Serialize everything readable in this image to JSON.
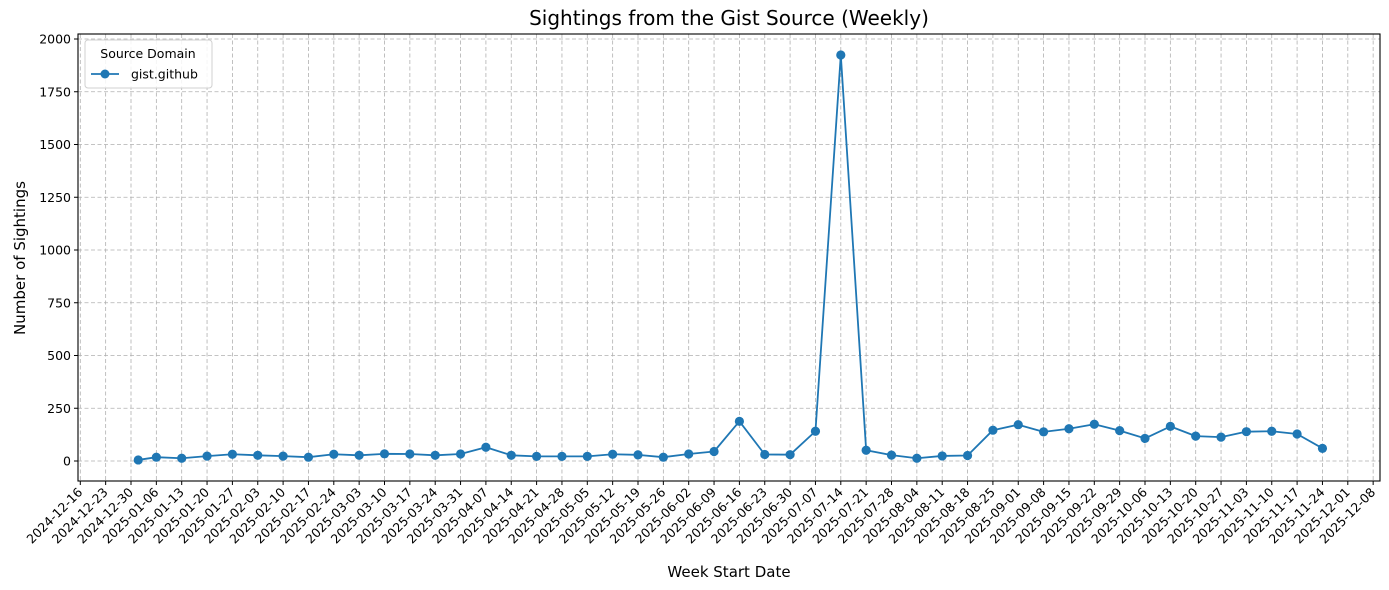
{
  "chart_data": {
    "type": "line",
    "title": "Sightings from the Gist Source (Weekly)",
    "xlabel": "Week Start Date",
    "ylabel": "Number of Sightings",
    "ylim": [
      -80,
      2020
    ],
    "yticks": [
      0,
      250,
      500,
      750,
      1000,
      1250,
      1500,
      1750,
      2000
    ],
    "grid": true,
    "legend": {
      "title": "Source Domain",
      "position": "upper left",
      "entries": [
        "gist.github"
      ]
    },
    "xtick_labels": [
      "2024-12-16",
      "2024-12-23",
      "2024-12-30",
      "2025-01-06",
      "2025-01-13",
      "2025-01-20",
      "2025-01-27",
      "2025-02-03",
      "2025-02-10",
      "2025-02-17",
      "2025-02-24",
      "2025-03-03",
      "2025-03-10",
      "2025-03-17",
      "2025-03-24",
      "2025-03-31",
      "2025-04-07",
      "2025-04-14",
      "2025-04-21",
      "2025-04-28",
      "2025-05-05",
      "2025-05-12",
      "2025-05-19",
      "2025-05-26",
      "2025-06-02",
      "2025-06-09",
      "2025-06-16",
      "2025-06-23",
      "2025-06-30",
      "2025-07-07",
      "2025-07-14",
      "2025-07-21",
      "2025-07-28",
      "2025-08-04",
      "2025-08-11",
      "2025-08-18",
      "2025-08-25",
      "2025-09-01",
      "2025-09-08",
      "2025-09-15",
      "2025-09-22",
      "2025-09-29",
      "2025-10-06",
      "2025-10-13",
      "2025-10-20",
      "2025-10-27",
      "2025-11-03",
      "2025-11-10",
      "2025-11-17",
      "2025-11-24",
      "2025-12-01",
      "2025-12-08"
    ],
    "series": [
      {
        "name": "gist.github",
        "color": "#1f77b4",
        "marker": "circle",
        "x": [
          "2025-01-01",
          "2025-01-06",
          "2025-01-13",
          "2025-01-20",
          "2025-01-27",
          "2025-02-03",
          "2025-02-10",
          "2025-02-17",
          "2025-02-24",
          "2025-03-03",
          "2025-03-10",
          "2025-03-17",
          "2025-03-24",
          "2025-03-31",
          "2025-04-07",
          "2025-04-14",
          "2025-04-21",
          "2025-04-28",
          "2025-05-05",
          "2025-05-12",
          "2025-05-19",
          "2025-05-26",
          "2025-06-02",
          "2025-06-09",
          "2025-06-16",
          "2025-06-23",
          "2025-06-30",
          "2025-07-07",
          "2025-07-14",
          "2025-07-21",
          "2025-07-28",
          "2025-08-04",
          "2025-08-11",
          "2025-08-18",
          "2025-08-25",
          "2025-09-01",
          "2025-09-08",
          "2025-09-15",
          "2025-09-22",
          "2025-09-29",
          "2025-10-06",
          "2025-10-13",
          "2025-10-20",
          "2025-10-27",
          "2025-11-03",
          "2025-11-10",
          "2025-11-17",
          "2025-11-24"
        ],
        "values": [
          5,
          18,
          13,
          23,
          32,
          27,
          23,
          18,
          32,
          27,
          34,
          33,
          27,
          33,
          65,
          27,
          22,
          22,
          22,
          32,
          29,
          18,
          33,
          45,
          188,
          31,
          30,
          141,
          1924,
          51,
          28,
          13,
          24,
          26,
          146,
          172,
          138,
          153,
          174,
          144,
          107,
          164,
          118,
          113,
          139,
          141,
          128,
          60
        ]
      }
    ]
  },
  "colors": {
    "line": "#1f77b4",
    "grid": "#b0b0b0",
    "axis": "#000000",
    "background": "#ffffff"
  }
}
